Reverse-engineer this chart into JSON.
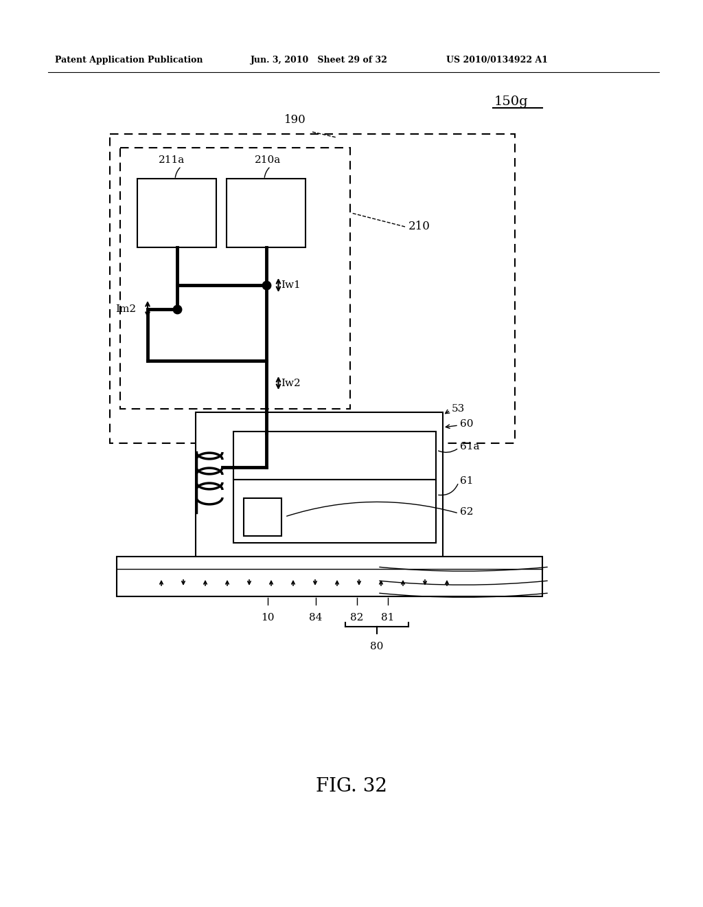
{
  "bg_color": "#ffffff",
  "header_left": "Patent Application Publication",
  "header_mid": "Jun. 3, 2010   Sheet 29 of 32",
  "header_right": "US 2010/0134922 A1",
  "figure_label": "FIG. 32",
  "label_150g": "150g",
  "label_190": "190",
  "label_210": "210",
  "label_211a": "211a",
  "label_210a": "210a",
  "label_Im2": "Im2",
  "label_Iw1": "Iw1",
  "label_Iw2": "Iw2",
  "label_53": "53",
  "label_60": "60",
  "label_61a": "61a",
  "label_61": "61",
  "label_62": "62",
  "label_10": "10",
  "label_84": "84",
  "label_82": "82",
  "label_81": "81",
  "label_80": "80"
}
